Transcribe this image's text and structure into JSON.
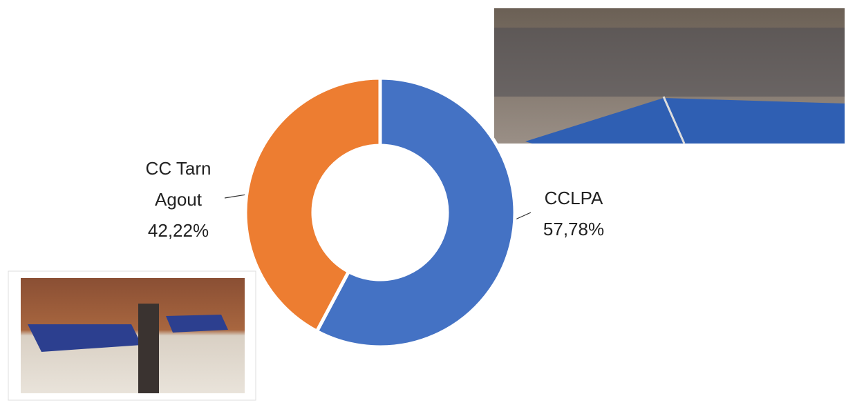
{
  "chart_data": {
    "type": "donut",
    "categories": [
      "CCLPA",
      "CC Tarn Agout"
    ],
    "values": [
      57.78,
      42.22
    ],
    "value_labels": [
      "57,78%",
      "42,22%"
    ],
    "colors": [
      "#4472c4",
      "#ed7d31"
    ]
  }
}
